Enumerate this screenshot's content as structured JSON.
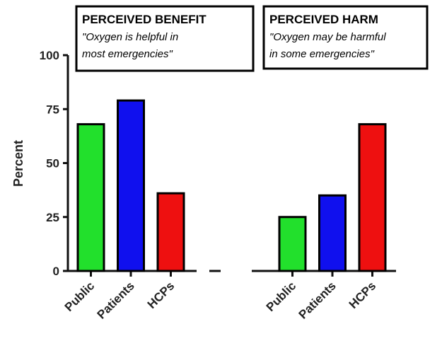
{
  "chart_data": {
    "type": "bar",
    "ylabel": "Percent",
    "ylim": [
      0,
      100
    ],
    "yticks": [
      0,
      25,
      50,
      75,
      100
    ],
    "groups": [
      {
        "title": "PERCEIVED BENEFIT",
        "quote_line1": "\"Oxygen is helpful in",
        "quote_line2": "most emergencies\"",
        "bars": [
          {
            "category": "Public",
            "value": 68,
            "color": "#22e02c"
          },
          {
            "category": "Patients",
            "value": 79,
            "color": "#1010ee"
          },
          {
            "category": "HCPs",
            "value": 36,
            "color": "#ee1010"
          }
        ]
      },
      {
        "title": "PERCEIVED HARM",
        "quote_line1": "\"Oxygen may be harmful",
        "quote_line2": "in some emergencies\"",
        "bars": [
          {
            "category": "Public",
            "value": 25,
            "color": "#22e02c"
          },
          {
            "category": "Patients",
            "value": 35,
            "color": "#1010ee"
          },
          {
            "category": "HCPs",
            "value": 68,
            "color": "#ee1010"
          }
        ]
      }
    ],
    "grid": false,
    "legend": "none"
  }
}
